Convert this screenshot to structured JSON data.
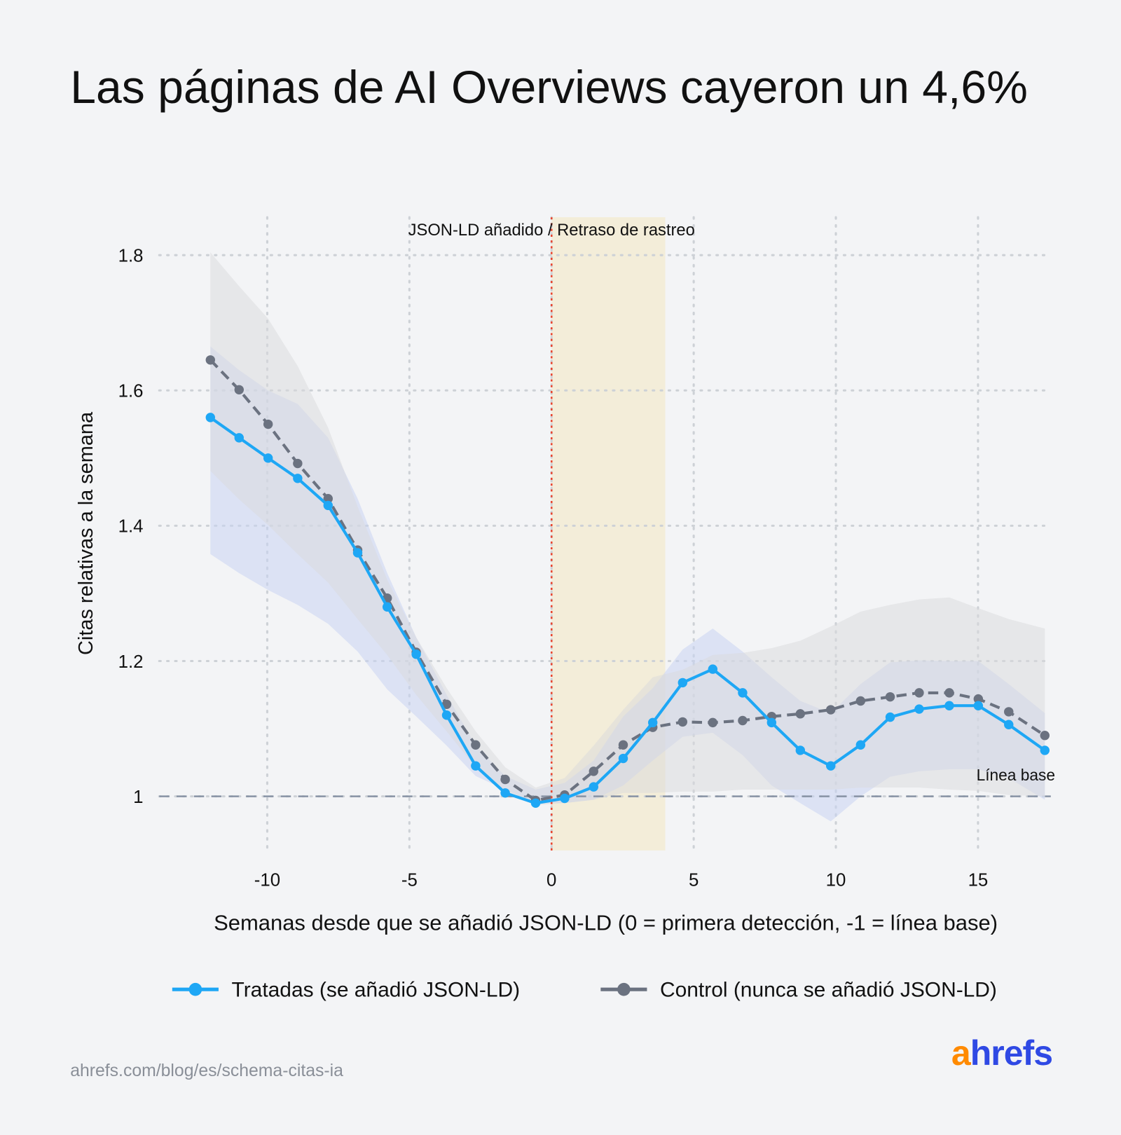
{
  "chart_data": {
    "type": "line",
    "title": "Las páginas de AI Overviews cayeron un 4,6%",
    "x_label": "Semanas desde que se añadió JSON-LD (0 = primera detección, -1 = línea base)",
    "y_label": "Citas relativas a la semana",
    "x": [
      -12.0,
      -10.99,
      -9.97,
      -8.93,
      -7.86,
      -6.82,
      -5.78,
      -4.76,
      -3.69,
      -2.67,
      -1.63,
      -0.56,
      0.46,
      1.48,
      2.52,
      3.56,
      4.61,
      5.67,
      6.72,
      7.74,
      8.75,
      9.82,
      10.87,
      11.91,
      12.93,
      13.99,
      15.01,
      16.08,
      17.35
    ],
    "series": [
      {
        "name": "Tratadas (se añadió JSON-LD)",
        "color": "#1ea7f5",
        "dashed": false,
        "band_color": "#c9d3f3",
        "values": [
          1.56,
          1.53,
          1.5,
          1.47,
          1.43,
          1.36,
          1.28,
          1.21,
          1.12,
          1.045,
          1.005,
          0.99,
          0.997,
          1.014,
          1.056,
          1.109,
          1.168,
          1.188,
          1.153,
          1.109,
          1.068,
          1.045,
          1.076,
          1.117,
          1.129,
          1.134,
          1.134,
          1.106,
          1.068
        ],
        "upper": [
          1.665,
          1.63,
          1.6,
          1.58,
          1.53,
          1.44,
          1.33,
          1.235,
          1.15,
          1.075,
          1.03,
          1.01,
          1.02,
          1.053,
          1.118,
          1.16,
          1.217,
          1.248,
          1.214,
          1.176,
          1.141,
          1.123,
          1.166,
          1.198,
          1.201,
          1.2,
          1.2,
          1.166,
          1.123
        ],
        "lower": [
          1.358,
          1.33,
          1.305,
          1.283,
          1.255,
          1.214,
          1.158,
          1.118,
          1.075,
          1.03,
          1.01,
          0.99,
          0.99,
          0.995,
          1.016,
          1.053,
          1.088,
          1.094,
          1.061,
          1.016,
          0.99,
          0.963,
          1.0,
          1.029,
          1.037,
          1.04,
          1.04,
          1.027,
          0.995
        ]
      },
      {
        "name": "Control (nunca se añadió JSON-LD)",
        "color": "#6b7280",
        "dashed": true,
        "band_color": "#d9dadb",
        "values": [
          1.645,
          1.601,
          1.55,
          1.492,
          1.44,
          1.364,
          1.293,
          1.213,
          1.136,
          1.076,
          1.025,
          0.994,
          1.002,
          1.037,
          1.076,
          1.102,
          1.11,
          1.109,
          1.112,
          1.118,
          1.122,
          1.128,
          1.141,
          1.147,
          1.153,
          1.153,
          1.144,
          1.125,
          1.09
        ],
        "upper": [
          1.804,
          1.754,
          1.706,
          1.636,
          1.545,
          1.428,
          1.32,
          1.235,
          1.16,
          1.096,
          1.043,
          1.013,
          1.027,
          1.075,
          1.128,
          1.176,
          1.187,
          1.209,
          1.212,
          1.219,
          1.23,
          1.251,
          1.273,
          1.283,
          1.291,
          1.294,
          1.278,
          1.262,
          1.248
        ],
        "lower": [
          1.481,
          1.439,
          1.401,
          1.358,
          1.316,
          1.262,
          1.209,
          1.15,
          1.096,
          1.043,
          1.005,
          0.987,
          0.99,
          0.995,
          1.005,
          1.005,
          1.007,
          1.007,
          1.01,
          1.01,
          1.01,
          1.01,
          1.013,
          1.013,
          1.013,
          1.01,
          1.008,
          1.002,
          1.0
        ]
      }
    ],
    "xlim": [
      -13.8,
      17.56
    ],
    "ylim": [
      0.92,
      1.856
    ],
    "xticks": [
      -10,
      -5,
      0,
      5,
      10,
      15
    ],
    "yticks": [
      1,
      1.2,
      1.4,
      1.6,
      1.8
    ],
    "grid": true,
    "event_line": 0,
    "event_label": "JSON-LD añadido / Retraso de rastreo",
    "shade": [
      0,
      4
    ],
    "baseline": 1,
    "baseline_label": "Línea base",
    "legend": "bottom",
    "source": "ahrefs.com/blog/es/schema-citas-ia",
    "logo": "ahrefs"
  }
}
